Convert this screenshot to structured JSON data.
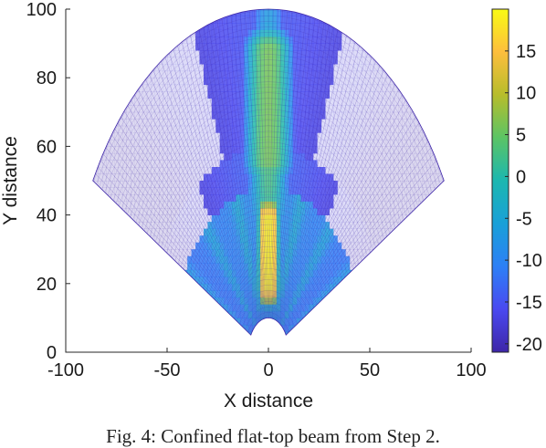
{
  "chart_data": {
    "type": "heatmap",
    "xlabel": "X distance",
    "ylabel": "Y distance",
    "xlim": [
      -100,
      100
    ],
    "ylim": [
      0,
      100
    ],
    "x_ticks": [
      "-100",
      "-50",
      "0",
      "50",
      "100"
    ],
    "y_ticks": [
      "0",
      "20",
      "40",
      "60",
      "80",
      "100"
    ],
    "colorbar": {
      "range": [
        -21,
        20
      ],
      "ticks": [
        "15",
        "10",
        "5",
        "0",
        "-5",
        "-10",
        "-15",
        "-20"
      ],
      "colormap": "parula",
      "colors": [
        "#3e26a8",
        "#4a49f0",
        "#2d80f6",
        "#19a0d8",
        "#1cb7b0",
        "#5bc465",
        "#b7bd2b",
        "#fdbe3d",
        "#f9fb14"
      ]
    },
    "domain": {
      "shape": "annular sector",
      "inner_radius": 10,
      "outer_radius": 100,
      "half_angle_deg": 60
    },
    "regions": [
      {
        "label": "peak flat-top beam",
        "y_range": [
          18,
          40
        ],
        "half_width": 5,
        "value": 19
      },
      {
        "label": "far-field lobe",
        "y_range": [
          55,
          90
        ],
        "half_width": 8,
        "value": 5
      },
      {
        "label": "near-source rays",
        "y_range": [
          10,
          40
        ],
        "value": -5
      },
      {
        "label": "background",
        "value": -20
      }
    ]
  },
  "caption": "Fig. 4: Confined flat-top beam from Step 2."
}
